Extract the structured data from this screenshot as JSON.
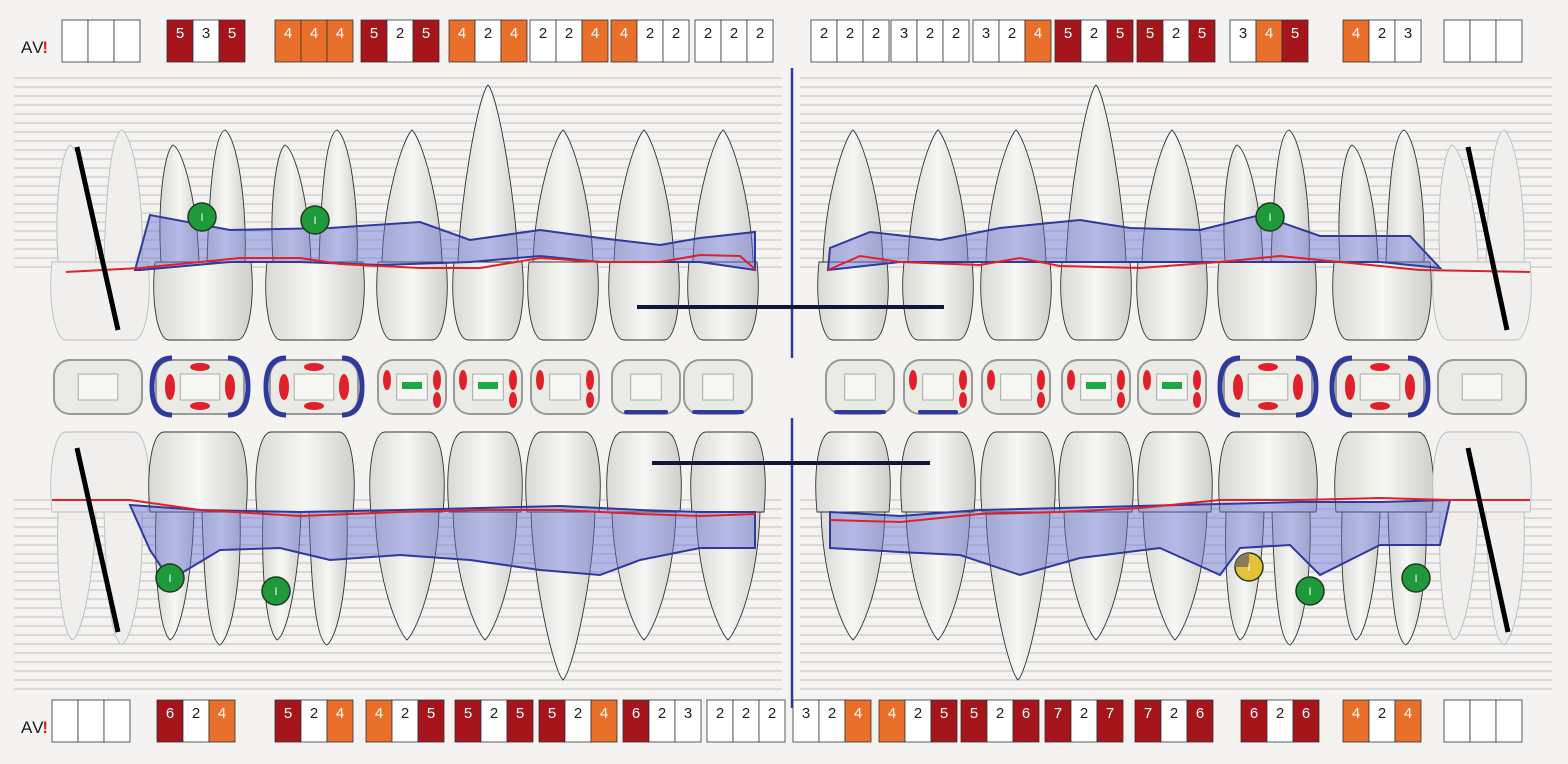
{
  "colors": {
    "background": "#f4f3f1",
    "depth_normal": "#ffffff",
    "depth_moderate": "#e8702a",
    "depth_severe": "#a6141c",
    "gingival_margin": "#e0202a",
    "attachment_level": "#2f3a9c",
    "implant": "#1e9a3a",
    "furcation_partial": "#e5c23a",
    "bleeding_marker": "#e0202a",
    "plaque_marker": "#1fa847",
    "midline": "#2f3a9c",
    "bridge_bar": "#11163a"
  },
  "labels": {
    "upper_av": "AV",
    "lower_av": "AV",
    "alert": "!",
    "implant_symbol": "I"
  },
  "upper_depths": [
    [
      null,
      null,
      null
    ],
    [
      5,
      3,
      5
    ],
    [
      4,
      4,
      4
    ],
    [
      5,
      2,
      5
    ],
    [
      4,
      2,
      4
    ],
    [
      2,
      2,
      4
    ],
    [
      4,
      2,
      2
    ],
    [
      2,
      2,
      2
    ],
    [
      2,
      2,
      2
    ],
    [
      3,
      2,
      2
    ],
    [
      3,
      2,
      4
    ],
    [
      5,
      2,
      5
    ],
    [
      5,
      2,
      5
    ],
    [
      3,
      4,
      5
    ],
    [
      4,
      2,
      3
    ],
    [
      null,
      null,
      null
    ]
  ],
  "lower_depths": [
    [
      null,
      null,
      null
    ],
    [
      6,
      2,
      4
    ],
    [
      5,
      2,
      4
    ],
    [
      4,
      2,
      5
    ],
    [
      5,
      2,
      5
    ],
    [
      5,
      2,
      4
    ],
    [
      6,
      2,
      3
    ],
    [
      2,
      2,
      2
    ],
    [
      3,
      2,
      4
    ],
    [
      4,
      2,
      5
    ],
    [
      5,
      2,
      6
    ],
    [
      7,
      2,
      7
    ],
    [
      7,
      2,
      6
    ],
    [
      6,
      2,
      6
    ],
    [
      4,
      2,
      4
    ],
    [
      null,
      null,
      null
    ]
  ],
  "upper_implants": [
    "upper-first-molar-right",
    "upper-second-premolar-right",
    "upper-second-premolar-left"
  ],
  "lower_implants": [
    "lower-first-molar-right",
    "lower-second-premolar-right",
    "lower-first-molar-left",
    "lower-second-molar-left"
  ],
  "lower_furcation": [
    "lower-second-premolar-left"
  ]
}
